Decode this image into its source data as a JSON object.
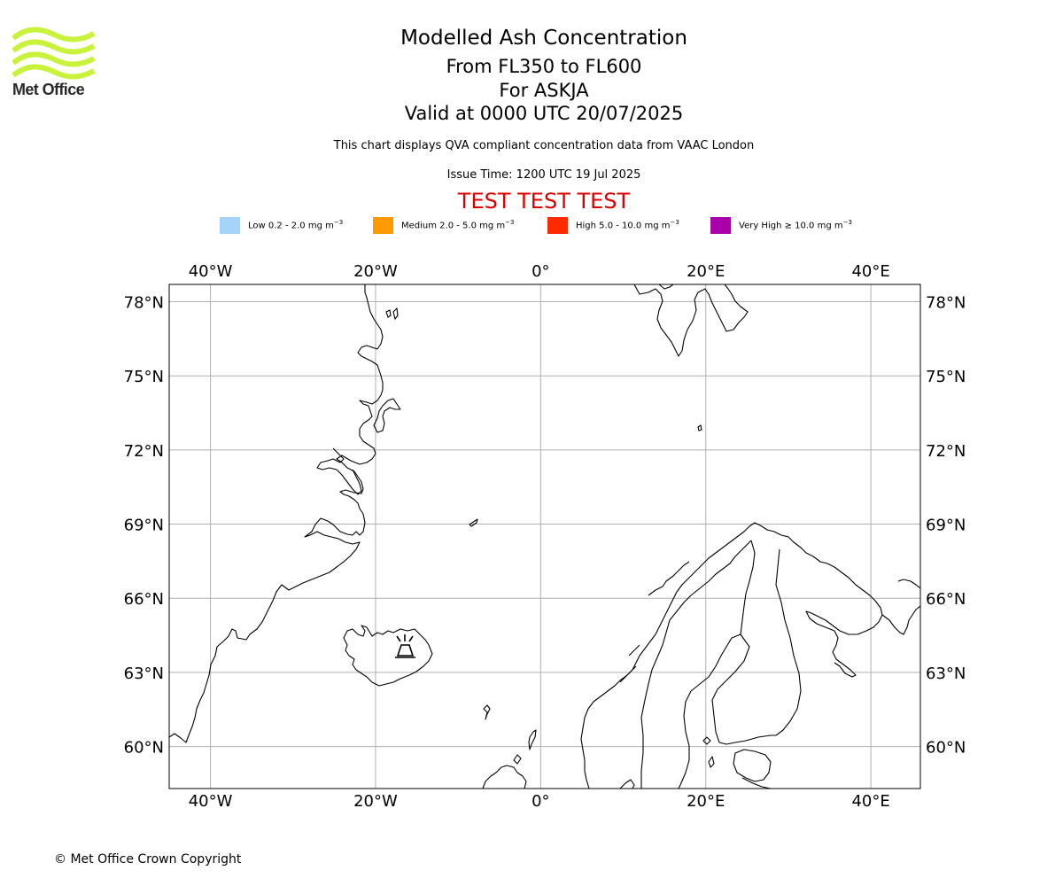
{
  "logo": {
    "text": "Met Office",
    "color": "#c9f23a"
  },
  "title": {
    "main": "Modelled Ash Concentration",
    "levels": "From FL350 to FL600",
    "volcano": "For ASKJA",
    "valid": "Valid at 0000 UTC 20/07/2025"
  },
  "subtitle": "This chart displays QVA compliant concentration data from VAAC London",
  "issue_time": "Issue Time: 1200 UTC 19 Jul 2025",
  "test_banner": {
    "text": "TEST TEST TEST",
    "color": "#dd0000"
  },
  "legend": [
    {
      "label": "Low 0.2 - 2.0 mg m",
      "color": "#a6d3fa"
    },
    {
      "label": "Medium 2.0 - 5.0 mg m",
      "color": "#ff9900"
    },
    {
      "label": "High 5.0 - 10.0 mg m",
      "color": "#ff2a00"
    },
    {
      "label": "Very High ≥ 10.0 mg m",
      "color": "#aa00aa"
    }
  ],
  "legend_exponent": "−3",
  "map": {
    "projection": "PlateCarree",
    "lon_range": [
      -45,
      46
    ],
    "lat_range": [
      58.3,
      78.7
    ],
    "lon_ticks": [
      {
        "value": -40,
        "label": "40°W"
      },
      {
        "value": -20,
        "label": "20°W"
      },
      {
        "value": 0,
        "label": "0°"
      },
      {
        "value": 20,
        "label": "20°E"
      },
      {
        "value": 40,
        "label": "40°E"
      }
    ],
    "lat_ticks": [
      {
        "value": 78,
        "label": "78°N"
      },
      {
        "value": 75,
        "label": "75°N"
      },
      {
        "value": 72,
        "label": "72°N"
      },
      {
        "value": 69,
        "label": "69°N"
      },
      {
        "value": 66,
        "label": "66°N"
      },
      {
        "value": 63,
        "label": "63°N"
      },
      {
        "value": 60,
        "label": "60°N"
      }
    ],
    "gridline_color": "#b0b0b0",
    "volcano_marker": {
      "name": "ASKJA",
      "icon": "volcano-icon"
    }
  },
  "copyright": "© Met Office Crown Copyright"
}
